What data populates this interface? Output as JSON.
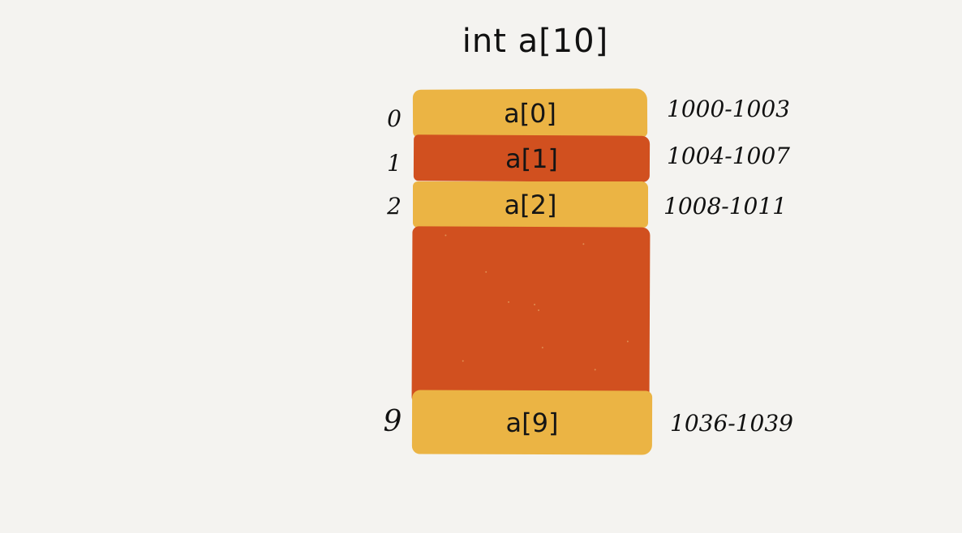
{
  "title": "int a[10]",
  "colors": {
    "background": "#f4f3f0",
    "cell_yellow": "#ebb444",
    "cell_red": "#d1501f"
  },
  "cells": [
    {
      "label": "a[0]",
      "index": "0",
      "address": "1000-1003"
    },
    {
      "label": "a[1]",
      "index": "1",
      "address": "1004-1007"
    },
    {
      "label": "a[2]",
      "index": "2",
      "address": "1008-1011"
    },
    {
      "label": "a[9]",
      "index": "9",
      "address": "1036-1039"
    }
  ]
}
